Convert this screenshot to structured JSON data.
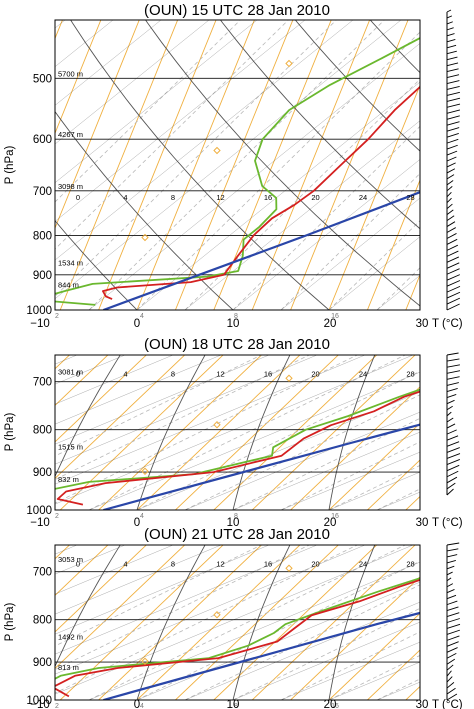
{
  "colors": {
    "isobar": "#111111",
    "dry_adiabat": "#555555",
    "moist_adiabat": "#f0b040",
    "mixing_ratio": "#b8b8b8",
    "isotherm": "#444444",
    "parcel": "#2a46a8",
    "temperature": "#d42020",
    "dewpoint": "#6ab82e",
    "barbs": "#000000",
    "frame": "#000000"
  },
  "chart_data": [
    {
      "type": "line",
      "title": "(OUN) 15 UTC 28 Jan 2010",
      "ylabel": "P (hPa)",
      "xlabel": "T (°C)",
      "x_unit": "°C",
      "xlim": [
        -10,
        30
      ],
      "x_ticks": [
        "−10",
        "0",
        "10",
        "20",
        "30"
      ],
      "y_scale": "log",
      "ylim": [
        1000,
        420
      ],
      "y_ticks": [
        "500",
        "600",
        "700",
        "800",
        "900",
        "1000"
      ],
      "mixing_ratio_labels": [
        "0",
        "4",
        "8",
        "12",
        "16",
        "20",
        "24",
        "28"
      ],
      "lower_labels": [
        "2",
        "4",
        "8",
        "16"
      ],
      "height_labels": [
        {
          "p": 500,
          "text": "5700 m"
        },
        {
          "p": 600,
          "text": "4267 m"
        },
        {
          "p": 700,
          "text": "3098 m"
        },
        {
          "p": 880,
          "text": "1534 m"
        },
        {
          "p": 940,
          "text": "844 m"
        }
      ],
      "series": [
        {
          "points": [
            [
              -3,
              430
            ],
            [
              -1,
              460
            ],
            [
              0.5,
              500
            ],
            [
              1,
              550
            ],
            [
              2,
              600
            ],
            [
              2.5,
              650
            ],
            [
              3,
              700
            ],
            [
              2.8,
              730
            ],
            [
              2.2,
              760
            ],
            [
              2.5,
              800
            ],
            [
              3.5,
              850
            ],
            [
              4.5,
              900
            ],
            [
              2,
              920
            ],
            [
              -5,
              935
            ],
            [
              -6,
              945
            ],
            [
              -5,
              960
            ],
            [
              -4,
              968
            ]
          ]
        },
        {
          "points": [
            [
              -5,
              430
            ],
            [
              -7,
              470
            ],
            [
              -9,
              510
            ],
            [
              -10,
              550
            ],
            [
              -9,
              600
            ],
            [
              -7,
              640
            ],
            [
              -3,
              690
            ],
            [
              0,
              715
            ],
            [
              1.5,
              740
            ],
            [
              2,
              780
            ],
            [
              2,
              810
            ],
            [
              4,
              850
            ],
            [
              5.5,
              890
            ],
            [
              3,
              905
            ],
            [
              -8,
              925
            ],
            [
              -10,
              945
            ],
            [
              -12,
              970
            ],
            [
              -5,
              985
            ]
          ]
        },
        {
          "points": [
            [
              -3.5,
              1000
            ],
            [
              8,
              800
            ],
            [
              27,
              540
            ]
          ]
        }
      ]
    },
    {
      "type": "line",
      "title": "(OUN) 18 UTC 28 Jan 2010",
      "ylabel": "P (hPa)",
      "xlabel": "T (°C)",
      "x_unit": "°C",
      "xlim": [
        -10,
        30
      ],
      "x_ticks": [
        "−10",
        "0",
        "10",
        "20",
        "30"
      ],
      "y_scale": "log",
      "ylim": [
        1000,
        650
      ],
      "y_ticks": [
        "700",
        "800",
        "900",
        "1000"
      ],
      "mixing_ratio_labels": [
        "0",
        "4",
        "8",
        "12",
        "16",
        "20",
        "24",
        "28"
      ],
      "lower_labels": [
        "2",
        "4",
        "8",
        "16"
      ],
      "height_labels": [
        {
          "p": 690,
          "text": "3081 m"
        },
        {
          "p": 850,
          "text": "1515 m"
        },
        {
          "p": 930,
          "text": "832 m"
        }
      ],
      "series": [
        {
          "points": [
            [
              0.5,
              650
            ],
            [
              0.5,
              700
            ],
            [
              -0.5,
              730
            ],
            [
              0,
              760
            ],
            [
              -1,
              790
            ],
            [
              -0.5,
              820
            ],
            [
              1.5,
              860
            ],
            [
              -1.5,
              900
            ],
            [
              -10,
              928
            ],
            [
              -12,
              950
            ],
            [
              -11,
              970
            ],
            [
              -7,
              985
            ]
          ]
        },
        {
          "points": [
            [
              0,
              650
            ],
            [
              0,
              690
            ],
            [
              -1,
              730
            ],
            [
              -1.5,
              770
            ],
            [
              -2.5,
              800
            ],
            [
              -1.5,
              840
            ],
            [
              0.5,
              860
            ],
            [
              -3,
              905
            ],
            [
              -12,
              925
            ],
            [
              -14,
              945
            ],
            [
              -13,
              970
            ],
            [
              -10,
              990
            ]
          ]
        },
        {
          "points": [
            [
              -3.5,
              1000
            ],
            [
              5.5,
              830
            ],
            [
              18,
              650
            ]
          ]
        }
      ]
    },
    {
      "type": "line",
      "title": "(OUN) 21 UTC 28 Jan 2010",
      "ylabel": "P (hPa)",
      "xlabel": "T (°C)",
      "x_unit": "°C",
      "xlim": [
        -10,
        30
      ],
      "x_ticks": [
        "−10",
        "0",
        "10",
        "20",
        "30"
      ],
      "y_scale": "log",
      "ylim": [
        1000,
        650
      ],
      "y_ticks": [
        "700",
        "800",
        "900",
        "1000"
      ],
      "mixing_ratio_labels": [
        "0",
        "4",
        "8",
        "12",
        "16",
        "20",
        "24",
        "28"
      ],
      "lower_labels": [
        "2",
        "4",
        "8",
        "16"
      ],
      "height_labels": [
        {
          "p": 685,
          "text": "3053 m"
        },
        {
          "p": 850,
          "text": "1492 m"
        },
        {
          "p": 925,
          "text": "813 m"
        }
      ],
      "series": [
        {
          "points": [
            [
              0.5,
              665
            ],
            [
              0,
              700
            ],
            [
              -1,
              730
            ],
            [
              -1.5,
              760
            ],
            [
              -3,
              790
            ],
            [
              -1.5,
              820
            ],
            [
              0,
              850
            ],
            [
              -2,
              890
            ],
            [
              -10,
              915
            ],
            [
              -12.5,
              935
            ],
            [
              -12,
              965
            ],
            [
              -8,
              990
            ]
          ]
        },
        {
          "points": [
            [
              0,
              665
            ],
            [
              -0.5,
              700
            ],
            [
              -2,
              740
            ],
            [
              -3,
              780
            ],
            [
              -3.5,
              810
            ],
            [
              -2.5,
              830
            ],
            [
              -2,
              860
            ],
            [
              -3,
              890
            ],
            [
              -12,
              915
            ],
            [
              -14,
              935
            ],
            [
              -13.5,
              960
            ],
            [
              -9,
              995
            ]
          ]
        },
        {
          "points": [
            [
              -3.5,
              1000
            ],
            [
              6,
              810
            ],
            [
              18,
              650
            ]
          ]
        }
      ]
    }
  ],
  "wind_barbs": [
    {
      "top": 12,
      "bottom": 310
    },
    {
      "top": 355,
      "bottom": 495
    },
    {
      "top": 545,
      "bottom": 700
    }
  ]
}
